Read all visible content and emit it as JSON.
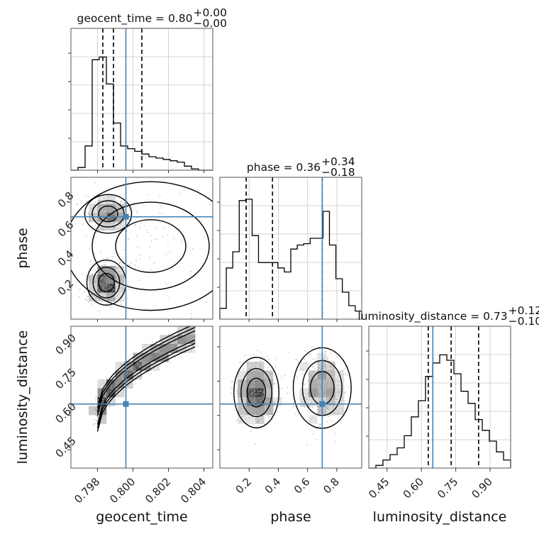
{
  "chart_data": {
    "type": "corner",
    "parameters": [
      {
        "key": "geocent_time",
        "label": "geocent_time",
        "range": [
          0.7965,
          0.8045
        ],
        "ticks": [
          "0.798",
          "0.800",
          "0.802",
          "0.804"
        ],
        "injection": 0.7996,
        "quantiles": [
          0.7983,
          0.7989,
          0.8005
        ],
        "title": {
          "main": "geocent_time = 0.80",
          "sup": "+0.00",
          "sub": "−0.00"
        },
        "hist": [
          0,
          0.02,
          0.18,
          0.82,
          0.84,
          0.64,
          0.35,
          0.18,
          0.16,
          0.14,
          0.12,
          0.1,
          0.09,
          0.08,
          0.07,
          0.06,
          0.03,
          0.01,
          0,
          0
        ]
      },
      {
        "key": "phase",
        "label": "phase",
        "range": [
          0.0,
          0.97
        ],
        "ticks": [
          "0.2",
          "0.4",
          "0.6",
          "0.8"
        ],
        "injection": 0.7,
        "quantiles": [
          0.18,
          0.36,
          0.7
        ],
        "title": {
          "main": "phase = 0.36",
          "sup": "+0.34",
          "sub": "−0.18"
        },
        "hist": [
          0.08,
          0.38,
          0.5,
          0.88,
          0.89,
          0.62,
          0.42,
          0.42,
          0.42,
          0.38,
          0.35,
          0.52,
          0.55,
          0.56,
          0.6,
          0.6,
          0.8,
          0.55,
          0.3,
          0.2,
          0.1,
          0.06
        ]
      },
      {
        "key": "luminosity_distance",
        "label": "luminosity_distance",
        "range": [
          0.37,
          0.99
        ],
        "ticks": [
          "0.45",
          "0.60",
          "0.75",
          "0.90"
        ],
        "injection": 0.65,
        "quantiles": [
          0.63,
          0.73,
          0.85
        ],
        "title": {
          "main": "luminosity_distance = 0.73",
          "sup": "+0.12",
          "sub": "−0.10"
        },
        "hist": [
          0,
          0.02,
          0.06,
          0.1,
          0.15,
          0.24,
          0.38,
          0.5,
          0.68,
          0.78,
          0.84,
          0.8,
          0.7,
          0.57,
          0.48,
          0.36,
          0.28,
          0.2,
          0.12,
          0.06
        ]
      }
    ],
    "pairs": [
      {
        "x": "geocent_time",
        "y": "phase",
        "modes": [
          {
            "x": 0.7985,
            "y": 0.25,
            "sx": 0.0005,
            "sy": 0.07,
            "w": 0.55
          },
          {
            "x": 0.7986,
            "y": 0.72,
            "sx": 0.0006,
            "sy": 0.06,
            "w": 0.35
          },
          {
            "x": 0.801,
            "y": 0.5,
            "sx": 0.0022,
            "sy": 0.2,
            "w": 0.1
          }
        ]
      },
      {
        "x": "geocent_time",
        "y": "luminosity_distance",
        "curve": {
          "x0": 0.798,
          "x1": 0.8035,
          "y0": 0.58,
          "y1": 0.95
        }
      },
      {
        "x": "phase",
        "y": "luminosity_distance",
        "modes": [
          {
            "x": 0.25,
            "y": 0.7,
            "sx": 0.07,
            "sy": 0.07,
            "w": 0.55
          },
          {
            "x": 0.7,
            "y": 0.72,
            "sx": 0.09,
            "sy": 0.08,
            "w": 0.45
          }
        ]
      }
    ],
    "injection_color": "#4682b4"
  }
}
